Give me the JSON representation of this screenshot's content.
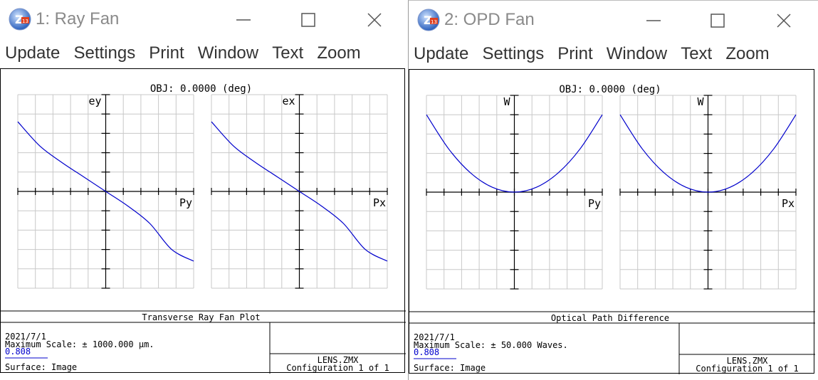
{
  "windows": [
    {
      "title": "1: Ray Fan",
      "menu": [
        "Update",
        "Settings",
        "Print",
        "Window",
        "Text",
        "Zoom"
      ],
      "obj_label": "OBJ: 0.0000 (deg)",
      "left_axis_y": "ey",
      "left_axis_x": "Py",
      "right_axis_y": "ex",
      "right_axis_x": "Px",
      "plot_title": "Transverse Ray Fan Plot",
      "date": "2021/7/1",
      "max_scale": "Maximum Scale: ± 1000.000 μm.",
      "wavelength": "0.808",
      "surface": "Surface: Image",
      "lens_file": "LENS.ZMX",
      "configuration": "Configuration 1 of 1",
      "chart_data": {
        "type": "line",
        "left": {
          "x": [
            -1,
            -0.75,
            -0.5,
            -0.25,
            0,
            0.25,
            0.5,
            0.75,
            1
          ],
          "y": [
            0.72,
            0.47,
            0.3,
            0.15,
            0,
            -0.15,
            -0.33,
            -0.6,
            -0.72
          ]
        },
        "right": {
          "x": [
            -1,
            -0.75,
            -0.5,
            -0.25,
            0,
            0.25,
            0.5,
            0.75,
            1
          ],
          "y": [
            0.72,
            0.47,
            0.3,
            0.15,
            0,
            -0.15,
            -0.33,
            -0.6,
            -0.72
          ]
        },
        "line_color": "#0000cc"
      }
    },
    {
      "title": "2: OPD Fan",
      "menu": [
        "Update",
        "Settings",
        "Print",
        "Window",
        "Text",
        "Zoom"
      ],
      "obj_label": "OBJ: 0.0000 (deg)",
      "left_axis_y": "W",
      "left_axis_x": "Py",
      "right_axis_y": "W",
      "right_axis_x": "Px",
      "plot_title": "Optical Path Difference",
      "date": "2021/7/1",
      "max_scale": "Maximum Scale: ± 50.000 Waves.",
      "wavelength": "0.808",
      "surface": "Surface: Image",
      "lens_file": "LENS.ZMX",
      "configuration": "Configuration 1 of 1",
      "chart_data": {
        "type": "line",
        "left": {
          "x": [
            -1,
            -0.75,
            -0.5,
            -0.25,
            0,
            0.25,
            0.5,
            0.75,
            1
          ],
          "y": [
            0.8,
            0.45,
            0.2,
            0.05,
            0,
            0.05,
            0.2,
            0.45,
            0.8
          ]
        },
        "right": {
          "x": [
            -1,
            -0.75,
            -0.5,
            -0.25,
            0,
            0.25,
            0.5,
            0.75,
            1
          ],
          "y": [
            0.8,
            0.45,
            0.2,
            0.05,
            0,
            0.05,
            0.2,
            0.45,
            0.8
          ]
        },
        "line_color": "#0000cc"
      }
    }
  ]
}
